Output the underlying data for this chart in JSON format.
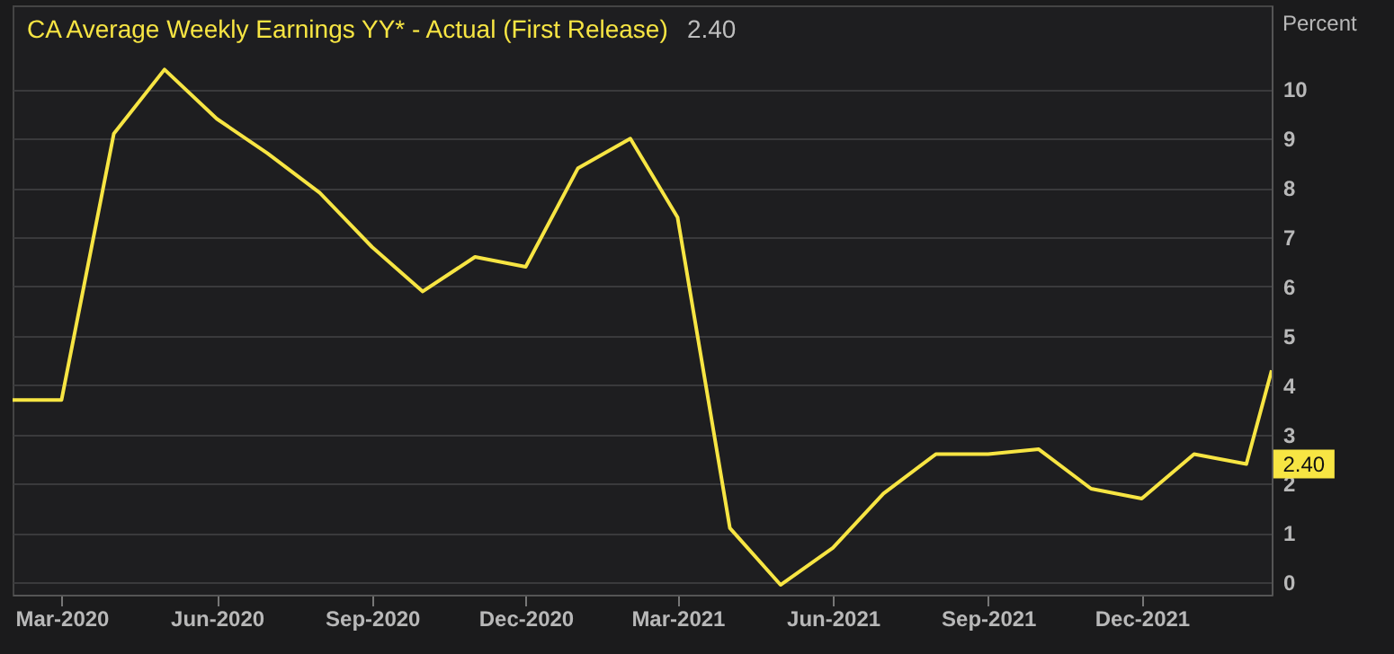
{
  "chart_data": {
    "type": "line",
    "title": "CA Average Weekly Earnings YY* - Actual (First Release)",
    "ylabel": "Percent",
    "annotations": [
      "2.40",
      {
        "text": "2.40",
        "x": "2022-02",
        "y": 2.4
      }
    ],
    "x": [
      "2020-02",
      "2020-03",
      "2020-04",
      "2020-05",
      "2020-06",
      "2020-07",
      "2020-08",
      "2020-09",
      "2020-10",
      "2020-11",
      "2020-12",
      "2021-01",
      "2021-02",
      "2021-03",
      "2021-04",
      "2021-05",
      "2021-06",
      "2021-07",
      "2021-08",
      "2021-09",
      "2021-10",
      "2021-11",
      "2021-12",
      "2022-01",
      "2022-02",
      "2022-02-16"
    ],
    "series": [
      {
        "color": "#f7e543",
        "values": [
          3.7,
          3.7,
          9.1,
          10.4,
          9.4,
          8.7,
          7.9,
          6.8,
          5.9,
          6.6,
          6.4,
          8.4,
          9.0,
          7.4,
          1.1,
          -0.05,
          0.7,
          1.8,
          2.6,
          2.6,
          2.7,
          1.9,
          1.7,
          2.6,
          2.4,
          4.3
        ]
      }
    ],
    "xlim": [
      "2020-02-01",
      "2022-02-16"
    ],
    "xticks": [
      {
        "value": "2020-03",
        "label": "Mar-2020"
      },
      {
        "value": "2020-06",
        "label": "Jun-2020"
      },
      {
        "value": "2020-09",
        "label": "Sep-2020"
      },
      {
        "value": "2020-12",
        "label": "Dec-2020"
      },
      {
        "value": "2021-03",
        "label": "Mar-2021"
      },
      {
        "value": "2021-06",
        "label": "Jun-2021"
      },
      {
        "value": "2021-09",
        "label": "Sep-2021"
      },
      {
        "value": "2021-12",
        "label": "Dec-2021"
      }
    ],
    "ylim": [
      -0.25,
      11.7
    ],
    "yticks": [
      0,
      1,
      2,
      3,
      4,
      5,
      6,
      7,
      8,
      9,
      10
    ],
    "grid": "y",
    "line_style": "solid",
    "marker": "none"
  }
}
